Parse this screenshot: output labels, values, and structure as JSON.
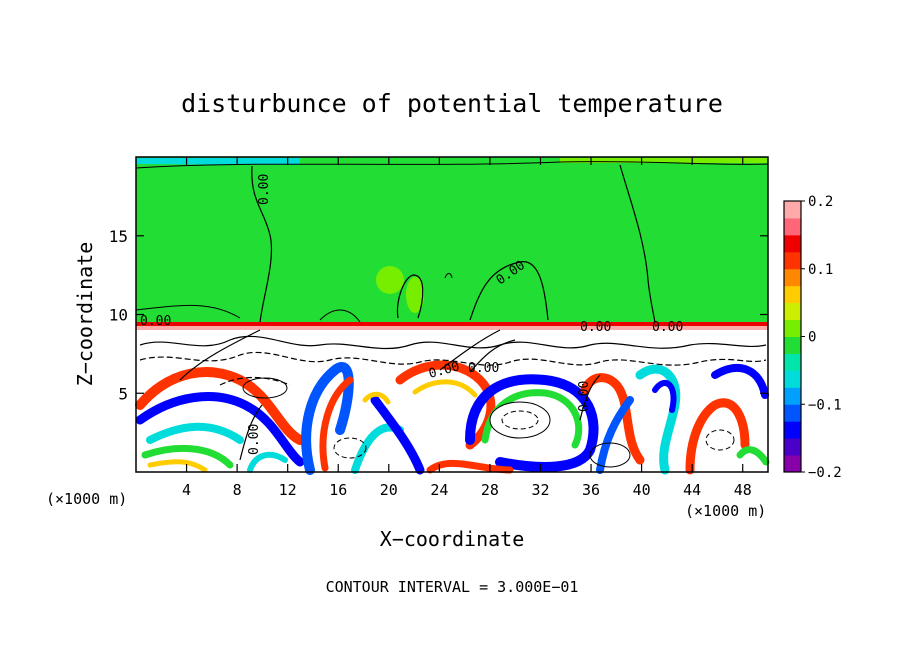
{
  "chart_data": {
    "type": "heatmap",
    "title": "disturbunce of potential temperature",
    "xlabel": "X−coordinate",
    "ylabel": "Z−coordinate",
    "xunit_left": "(×1000 m)",
    "xunit_right": "(×1000 m)",
    "xlim": [
      0,
      50
    ],
    "ylim": [
      0,
      20
    ],
    "xticks": [
      4,
      8,
      12,
      16,
      20,
      24,
      28,
      32,
      36,
      40,
      44,
      48
    ],
    "yticks": [
      5,
      10,
      15
    ],
    "colorbar": {
      "range": [
        -0.2,
        0.2
      ],
      "ticks": [
        "0.2",
        "0.1",
        "0",
        "−0.1",
        "−0.2"
      ],
      "colors": [
        "#8800aa",
        "#4b00c8",
        "#0000ff",
        "#0055ff",
        "#00a0ff",
        "#00dcdc",
        "#00e6aa",
        "#22dd33",
        "#77ee00",
        "#ccee00",
        "#ffcc00",
        "#ff8800",
        "#ff3300",
        "#ee0000",
        "#ff6677",
        "#ffaaaa"
      ]
    },
    "contour_labels": [
      "0.00",
      "0.00",
      "0.00",
      "0.00",
      "0.00",
      "0.00",
      "0.00",
      "0.00",
      "0.00"
    ],
    "contour_interval_text": "CONTOUR INTERVAL = 3.000E−01"
  }
}
